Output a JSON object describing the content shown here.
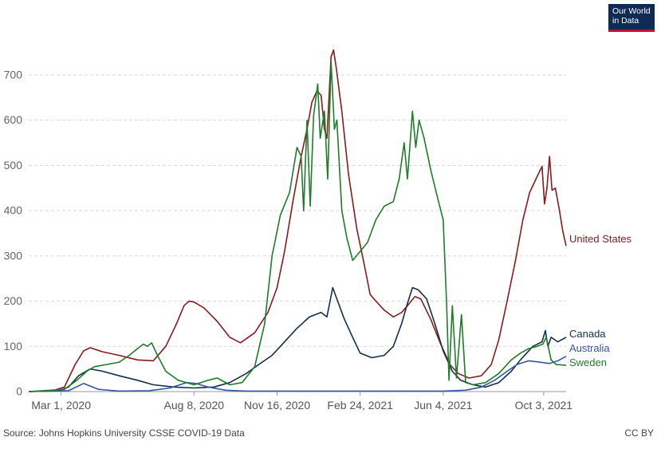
{
  "logo": {
    "line1": "Our World",
    "line2": "in Data"
  },
  "footer": {
    "source": "Source: Johns Hopkins University CSSE COVID-19 Data",
    "license": "CC BY"
  },
  "chart_data": {
    "type": "line",
    "ylim": [
      0,
      760
    ],
    "yticks": [
      0,
      100,
      200,
      300,
      400,
      500,
      600,
      700
    ],
    "xlim": [
      "2020-01-22",
      "2021-10-30"
    ],
    "xticks": [
      {
        "date": "2020-03-01",
        "label": "Mar 1, 2020"
      },
      {
        "date": "2020-08-08",
        "label": "Aug 8, 2020"
      },
      {
        "date": "2020-11-16",
        "label": "Nov 16, 2020"
      },
      {
        "date": "2021-02-24",
        "label": "Feb 24, 2021"
      },
      {
        "date": "2021-06-04",
        "label": "Jun 4, 2021"
      },
      {
        "date": "2021-10-03",
        "label": "Oct 3, 2021"
      }
    ],
    "grid": true,
    "legend": "end-of-line labels",
    "series": [
      {
        "name": "United States",
        "color": "#8b1a1e",
        "points": [
          [
            "2020-01-22",
            0
          ],
          [
            "2020-02-20",
            2
          ],
          [
            "2020-03-05",
            10
          ],
          [
            "2020-03-18",
            60
          ],
          [
            "2020-03-28",
            90
          ],
          [
            "2020-04-05",
            97
          ],
          [
            "2020-04-20",
            88
          ],
          [
            "2020-05-10",
            80
          ],
          [
            "2020-06-01",
            70
          ],
          [
            "2020-06-20",
            68
          ],
          [
            "2020-07-05",
            100
          ],
          [
            "2020-07-18",
            150
          ],
          [
            "2020-07-27",
            190
          ],
          [
            "2020-08-02",
            200
          ],
          [
            "2020-08-08",
            198
          ],
          [
            "2020-08-20",
            185
          ],
          [
            "2020-09-05",
            155
          ],
          [
            "2020-09-20",
            120
          ],
          [
            "2020-10-03",
            108
          ],
          [
            "2020-10-20",
            130
          ],
          [
            "2020-11-05",
            175
          ],
          [
            "2020-11-16",
            230
          ],
          [
            "2020-11-25",
            310
          ],
          [
            "2020-12-05",
            420
          ],
          [
            "2020-12-15",
            520
          ],
          [
            "2020-12-22",
            580
          ],
          [
            "2020-12-28",
            640
          ],
          [
            "2021-01-03",
            665
          ],
          [
            "2021-01-08",
            655
          ],
          [
            "2021-01-12",
            580
          ],
          [
            "2021-01-15",
            560
          ],
          [
            "2021-01-20",
            740
          ],
          [
            "2021-01-23",
            755
          ],
          [
            "2021-01-26",
            720
          ],
          [
            "2021-02-02",
            620
          ],
          [
            "2021-02-10",
            480
          ],
          [
            "2021-02-20",
            360
          ],
          [
            "2021-03-01",
            280
          ],
          [
            "2021-03-08",
            215
          ],
          [
            "2021-03-15",
            200
          ],
          [
            "2021-03-25",
            180
          ],
          [
            "2021-04-05",
            165
          ],
          [
            "2021-04-15",
            175
          ],
          [
            "2021-04-22",
            190
          ],
          [
            "2021-05-01",
            210
          ],
          [
            "2021-05-08",
            205
          ],
          [
            "2021-05-20",
            160
          ],
          [
            "2021-06-01",
            105
          ],
          [
            "2021-06-12",
            60
          ],
          [
            "2021-06-22",
            40
          ],
          [
            "2021-07-05",
            30
          ],
          [
            "2021-07-20",
            35
          ],
          [
            "2021-08-01",
            60
          ],
          [
            "2021-08-10",
            115
          ],
          [
            "2021-08-20",
            200
          ],
          [
            "2021-08-30",
            290
          ],
          [
            "2021-09-08",
            380
          ],
          [
            "2021-09-16",
            440
          ],
          [
            "2021-09-25",
            475
          ],
          [
            "2021-10-01",
            498
          ],
          [
            "2021-10-04",
            415
          ],
          [
            "2021-10-07",
            450
          ],
          [
            "2021-10-10",
            520
          ],
          [
            "2021-10-13",
            445
          ],
          [
            "2021-10-17",
            450
          ],
          [
            "2021-10-22",
            400
          ],
          [
            "2021-10-26",
            355
          ],
          [
            "2021-10-30",
            322
          ]
        ]
      },
      {
        "name": "Canada",
        "color": "#152e4f",
        "points": [
          [
            "2020-01-22",
            0
          ],
          [
            "2020-02-28",
            2
          ],
          [
            "2020-03-10",
            10
          ],
          [
            "2020-03-22",
            35
          ],
          [
            "2020-04-05",
            50
          ],
          [
            "2020-04-20",
            45
          ],
          [
            "2020-05-10",
            35
          ],
          [
            "2020-06-01",
            25
          ],
          [
            "2020-06-20",
            15
          ],
          [
            "2020-07-15",
            10
          ],
          [
            "2020-08-08",
            8
          ],
          [
            "2020-09-01",
            10
          ],
          [
            "2020-09-20",
            20
          ],
          [
            "2020-10-10",
            40
          ],
          [
            "2020-10-25",
            60
          ],
          [
            "2020-11-10",
            80
          ],
          [
            "2020-11-25",
            110
          ],
          [
            "2020-12-10",
            140
          ],
          [
            "2020-12-25",
            165
          ],
          [
            "2021-01-08",
            175
          ],
          [
            "2021-01-15",
            165
          ],
          [
            "2021-01-22",
            230
          ],
          [
            "2021-01-28",
            200
          ],
          [
            "2021-02-05",
            160
          ],
          [
            "2021-02-15",
            120
          ],
          [
            "2021-02-24",
            85
          ],
          [
            "2021-03-10",
            75
          ],
          [
            "2021-03-25",
            80
          ],
          [
            "2021-04-05",
            100
          ],
          [
            "2021-04-15",
            150
          ],
          [
            "2021-04-22",
            195
          ],
          [
            "2021-04-28",
            230
          ],
          [
            "2021-05-05",
            225
          ],
          [
            "2021-05-15",
            205
          ],
          [
            "2021-05-25",
            150
          ],
          [
            "2021-06-04",
            90
          ],
          [
            "2021-06-15",
            45
          ],
          [
            "2021-06-25",
            25
          ],
          [
            "2021-07-10",
            15
          ],
          [
            "2021-07-25",
            10
          ],
          [
            "2021-08-10",
            20
          ],
          [
            "2021-08-25",
            45
          ],
          [
            "2021-09-05",
            70
          ],
          [
            "2021-09-20",
            100
          ],
          [
            "2021-10-01",
            110
          ],
          [
            "2021-10-05",
            135
          ],
          [
            "2021-10-08",
            100
          ],
          [
            "2021-10-12",
            120
          ],
          [
            "2021-10-20",
            110
          ],
          [
            "2021-10-30",
            120
          ]
        ]
      },
      {
        "name": "Australia",
        "color": "#3755a6",
        "points": [
          [
            "2020-01-22",
            0
          ],
          [
            "2020-03-10",
            2
          ],
          [
            "2020-03-28",
            18
          ],
          [
            "2020-04-15",
            5
          ],
          [
            "2020-05-10",
            1
          ],
          [
            "2020-06-15",
            2
          ],
          [
            "2020-07-10",
            8
          ],
          [
            "2020-07-30",
            20
          ],
          [
            "2020-08-10",
            18
          ],
          [
            "2020-08-25",
            10
          ],
          [
            "2020-09-15",
            3
          ],
          [
            "2020-10-10",
            1
          ],
          [
            "2021-06-04",
            1
          ],
          [
            "2021-07-01",
            3
          ],
          [
            "2021-07-20",
            10
          ],
          [
            "2021-08-05",
            25
          ],
          [
            "2021-08-20",
            45
          ],
          [
            "2021-09-01",
            60
          ],
          [
            "2021-09-15",
            68
          ],
          [
            "2021-09-28",
            65
          ],
          [
            "2021-10-10",
            62
          ],
          [
            "2021-10-20",
            68
          ],
          [
            "2021-10-30",
            78
          ]
        ]
      },
      {
        "name": "Sweden",
        "color": "#1d7d2a",
        "points": [
          [
            "2020-01-22",
            0
          ],
          [
            "2020-03-05",
            5
          ],
          [
            "2020-03-20",
            25
          ],
          [
            "2020-04-01",
            45
          ],
          [
            "2020-04-10",
            55
          ],
          [
            "2020-04-25",
            60
          ],
          [
            "2020-05-10",
            65
          ],
          [
            "2020-05-22",
            80
          ],
          [
            "2020-06-01",
            95
          ],
          [
            "2020-06-08",
            105
          ],
          [
            "2020-06-13",
            100
          ],
          [
            "2020-06-18",
            108
          ],
          [
            "2020-06-25",
            80
          ],
          [
            "2020-07-05",
            45
          ],
          [
            "2020-07-20",
            25
          ],
          [
            "2020-08-08",
            15
          ],
          [
            "2020-08-25",
            25
          ],
          [
            "2020-09-05",
            30
          ],
          [
            "2020-09-20",
            15
          ],
          [
            "2020-10-05",
            20
          ],
          [
            "2020-10-20",
            55
          ],
          [
            "2020-11-01",
            150
          ],
          [
            "2020-11-10",
            300
          ],
          [
            "2020-11-20",
            390
          ],
          [
            "2020-12-01",
            440
          ],
          [
            "2020-12-10",
            540
          ],
          [
            "2020-12-15",
            520
          ],
          [
            "2020-12-18",
            400
          ],
          [
            "2020-12-22",
            600
          ],
          [
            "2020-12-26",
            410
          ],
          [
            "2020-12-30",
            610
          ],
          [
            "2021-01-04",
            680
          ],
          [
            "2021-01-07",
            560
          ],
          [
            "2021-01-12",
            620
          ],
          [
            "2021-01-16",
            470
          ],
          [
            "2021-01-20",
            730
          ],
          [
            "2021-01-24",
            580
          ],
          [
            "2021-01-27",
            600
          ],
          [
            "2021-02-02",
            400
          ],
          [
            "2021-02-08",
            340
          ],
          [
            "2021-02-15",
            290
          ],
          [
            "2021-02-24",
            310
          ],
          [
            "2021-03-05",
            330
          ],
          [
            "2021-03-15",
            380
          ],
          [
            "2021-03-25",
            410
          ],
          [
            "2021-04-05",
            420
          ],
          [
            "2021-04-12",
            470
          ],
          [
            "2021-04-18",
            550
          ],
          [
            "2021-04-22",
            470
          ],
          [
            "2021-04-28",
            620
          ],
          [
            "2021-05-02",
            540
          ],
          [
            "2021-05-06",
            600
          ],
          [
            "2021-05-12",
            560
          ],
          [
            "2021-05-20",
            490
          ],
          [
            "2021-05-28",
            430
          ],
          [
            "2021-06-04",
            380
          ],
          [
            "2021-06-08",
            200
          ],
          [
            "2021-06-11",
            25
          ],
          [
            "2021-06-15",
            190
          ],
          [
            "2021-06-20",
            30
          ],
          [
            "2021-06-26",
            170
          ],
          [
            "2021-07-01",
            20
          ],
          [
            "2021-07-10",
            15
          ],
          [
            "2021-07-25",
            20
          ],
          [
            "2021-08-10",
            40
          ],
          [
            "2021-08-25",
            70
          ],
          [
            "2021-09-05",
            85
          ],
          [
            "2021-09-15",
            95
          ],
          [
            "2021-09-25",
            100
          ],
          [
            "2021-10-02",
            105
          ],
          [
            "2021-10-06",
            120
          ],
          [
            "2021-10-12",
            70
          ],
          [
            "2021-10-18",
            60
          ],
          [
            "2021-10-30",
            58
          ]
        ]
      }
    ]
  }
}
